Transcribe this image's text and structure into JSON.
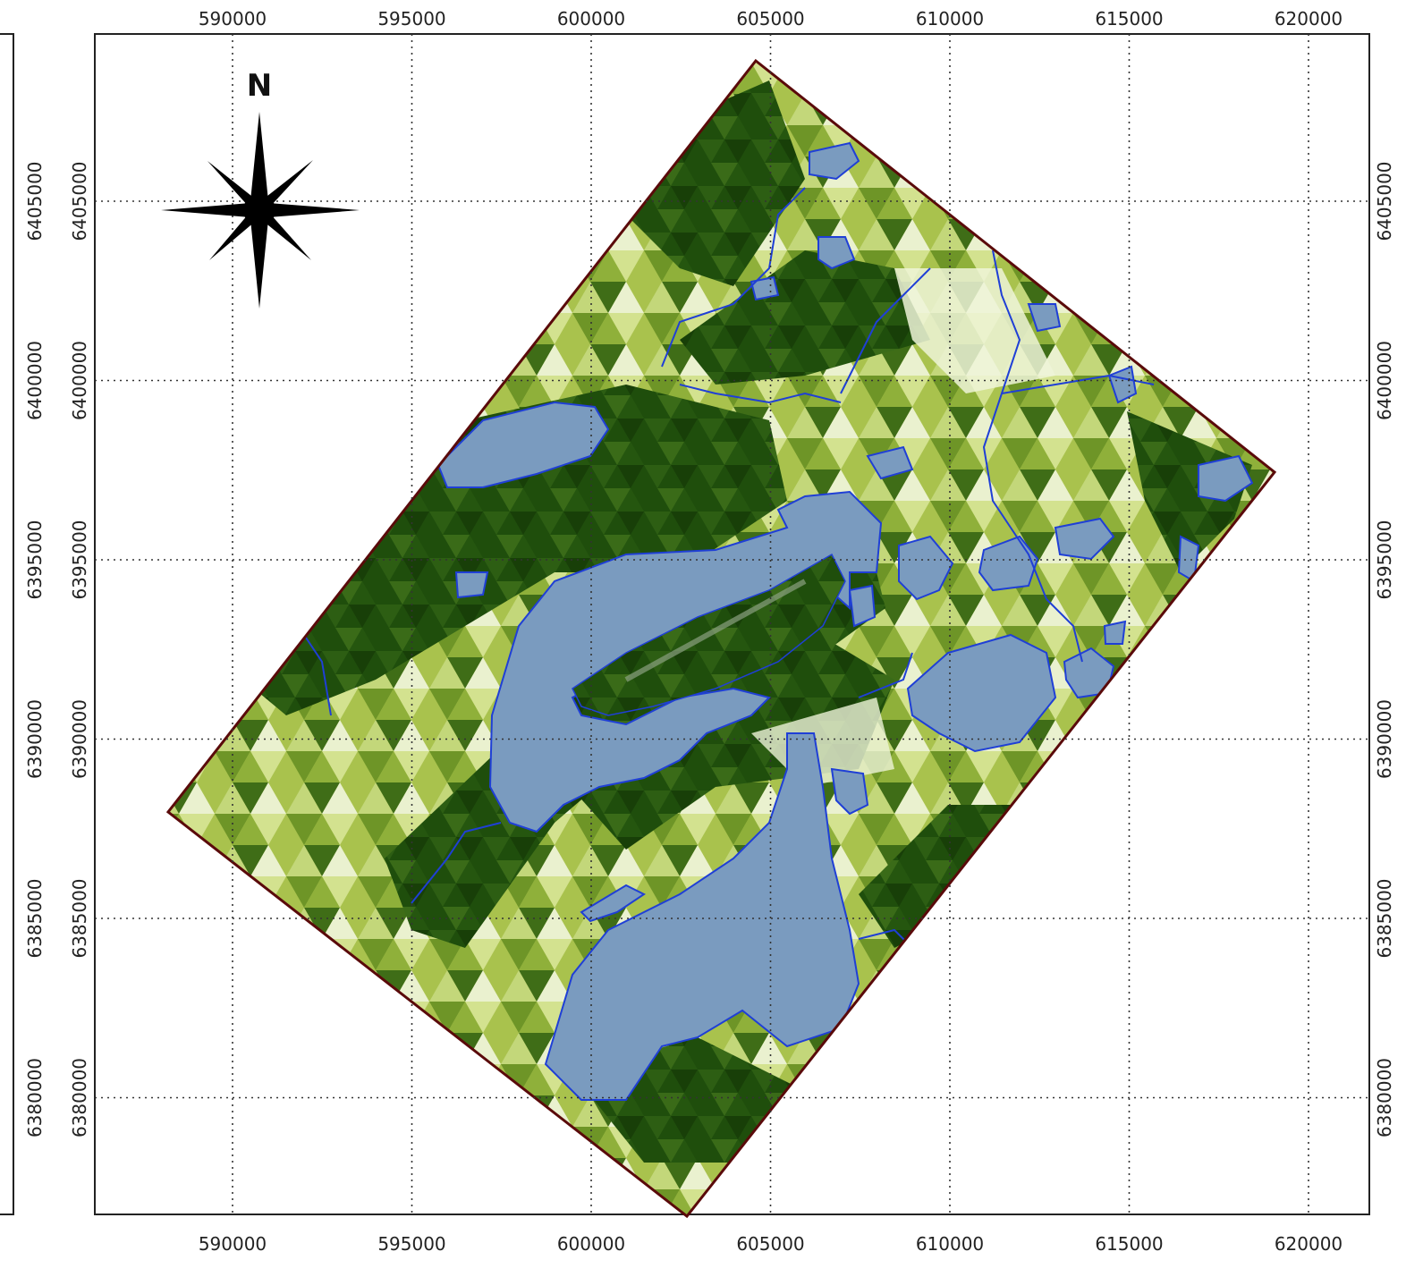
{
  "map": {
    "north_label": "N",
    "x_ticks": [
      "590000",
      "595000",
      "600000",
      "605000",
      "610000",
      "615000",
      "620000"
    ],
    "y_ticks": [
      "6405000",
      "6400000",
      "6395000",
      "6390000",
      "6385000",
      "6380000"
    ],
    "colors": {
      "veg_dark": "#1f4e0c",
      "veg_mid": "#5a821e",
      "veg_light": "#a9c24d",
      "veg_pale": "#e9f1cf",
      "water_fill": "#7a9bbf",
      "water_line": "#1f3fd6",
      "boundary": "#5a0a0a",
      "grid": "#333333"
    }
  }
}
